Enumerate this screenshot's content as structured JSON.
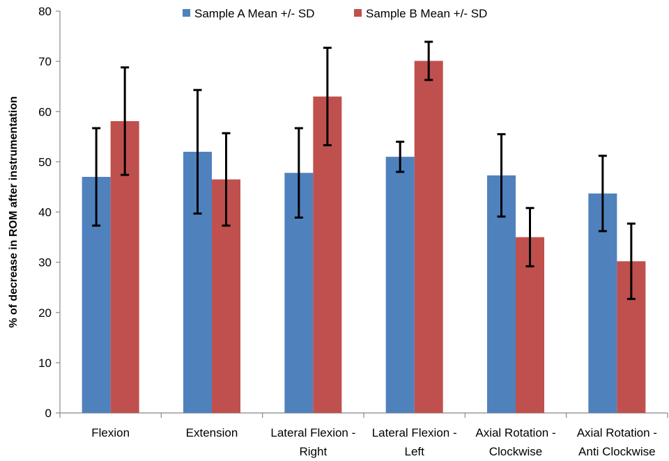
{
  "chart_data": {
    "type": "bar",
    "title": "",
    "xlabel": "",
    "ylabel": "% of decrease in ROM after instrumentation",
    "ylim": [
      0,
      80
    ],
    "yticks": [
      0,
      10,
      20,
      30,
      40,
      50,
      60,
      70,
      80
    ],
    "grid": false,
    "legend_position": "top",
    "categories": [
      [
        "Flexion"
      ],
      [
        "Extension"
      ],
      [
        "Lateral Flexion -",
        "Right"
      ],
      [
        "Lateral Flexion -",
        "Left"
      ],
      [
        "Axial Rotation -",
        "Clockwise"
      ],
      [
        "Axial Rotation -",
        "Anti Clockwise"
      ]
    ],
    "series": [
      {
        "name": "Sample A Mean +/- SD",
        "color": "#4F81BD",
        "values": [
          47,
          52,
          47.8,
          51,
          47.3,
          43.7
        ],
        "error": [
          9.7,
          12.3,
          8.9,
          3,
          8.2,
          7.5
        ]
      },
      {
        "name": "Sample B Mean +/- SD",
        "color": "#C0504D",
        "values": [
          58.1,
          46.5,
          63,
          70.1,
          35,
          30.2
        ],
        "error": [
          10.7,
          9.2,
          9.7,
          3.8,
          5.8,
          7.5
        ]
      }
    ]
  }
}
